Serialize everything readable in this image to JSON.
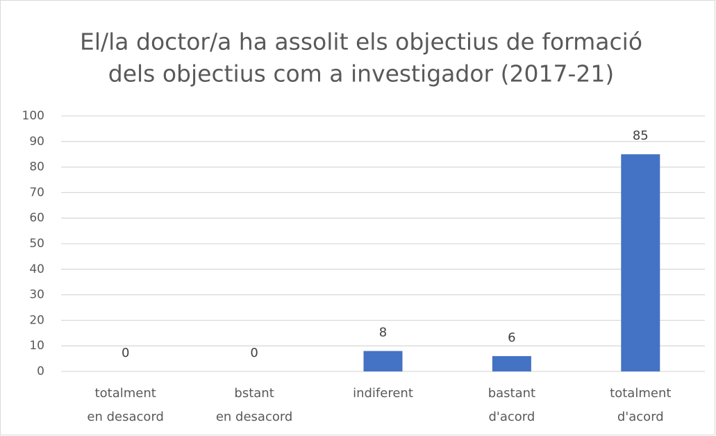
{
  "chart_data": {
    "type": "bar",
    "title": [
      "El/la doctor/a ha assolit els objectius de formació",
      "dels objectius com a investigador (2017-21)"
    ],
    "categories": [
      [
        "totalment",
        "en desacord"
      ],
      [
        "bstant",
        "en desacord"
      ],
      [
        "indiferent"
      ],
      [
        "bastant",
        "d'acord"
      ],
      [
        "totalment",
        "d'acord"
      ]
    ],
    "values": [
      0,
      0,
      8,
      6,
      85
    ],
    "color": "#4472c4",
    "ylim": [
      0,
      100
    ],
    "yticks": [
      0,
      10,
      20,
      30,
      40,
      50,
      60,
      70,
      80,
      90,
      100
    ],
    "grid": true
  }
}
